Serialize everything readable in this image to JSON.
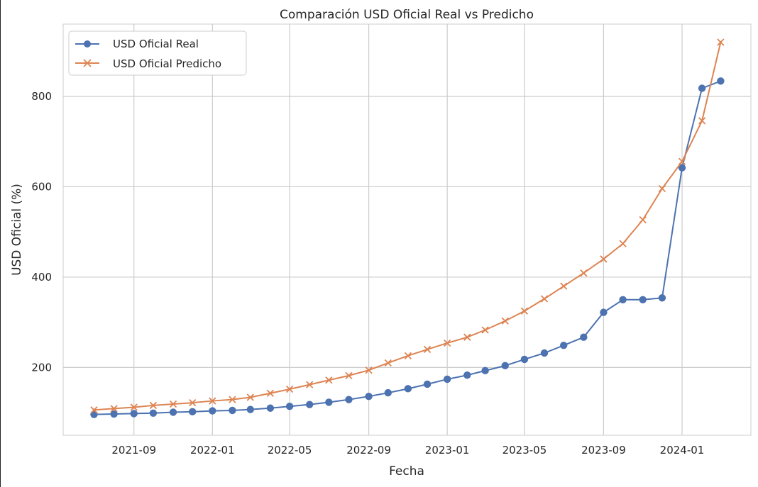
{
  "chart_data": {
    "type": "line",
    "title": "Comparación USD Oficial Real vs Predicho",
    "xlabel": "Fecha",
    "ylabel": "USD Oficial (%)",
    "x": [
      "2021-07",
      "2021-08",
      "2021-09",
      "2021-10",
      "2021-11",
      "2021-12",
      "2022-01",
      "2022-02",
      "2022-03",
      "2022-04",
      "2022-05",
      "2022-06",
      "2022-07",
      "2022-08",
      "2022-09",
      "2022-10",
      "2022-11",
      "2022-12",
      "2023-01",
      "2023-02",
      "2023-03",
      "2023-04",
      "2023-05",
      "2023-06",
      "2023-07",
      "2023-08",
      "2023-09",
      "2023-10",
      "2023-11",
      "2023-12",
      "2024-01",
      "2024-02",
      "2024-03"
    ],
    "xlim": [
      "2021-05-14",
      "2024-04-17"
    ],
    "ylim": [
      50,
      960
    ],
    "x_ticks": [
      "2021-09",
      "2022-01",
      "2022-05",
      "2022-09",
      "2023-01",
      "2023-05",
      "2023-09",
      "2024-01"
    ],
    "y_ticks": [
      200,
      400,
      600,
      800
    ],
    "grid": true,
    "legend_position": "top-left",
    "series": [
      {
        "name": "USD Oficial Real",
        "color": "#4c72b0",
        "marker": "circle",
        "values": [
          96,
          97,
          98,
          99,
          101,
          102,
          104,
          105,
          107,
          110,
          114,
          118,
          123,
          129,
          136,
          144,
          153,
          163,
          174,
          183,
          193,
          204,
          218,
          232,
          249,
          267,
          322,
          350,
          350,
          354,
          642,
          818,
          834
        ]
      },
      {
        "name": "USD Oficial Predicho",
        "color": "#dd8452",
        "marker": "x",
        "values": [
          106,
          109,
          112,
          116,
          119,
          122,
          126,
          129,
          134,
          143,
          152,
          162,
          172,
          182,
          194,
          210,
          226,
          240,
          254,
          267,
          283,
          303,
          325,
          352,
          380,
          409,
          440,
          474,
          527,
          596,
          656,
          746,
          920
        ]
      }
    ]
  }
}
